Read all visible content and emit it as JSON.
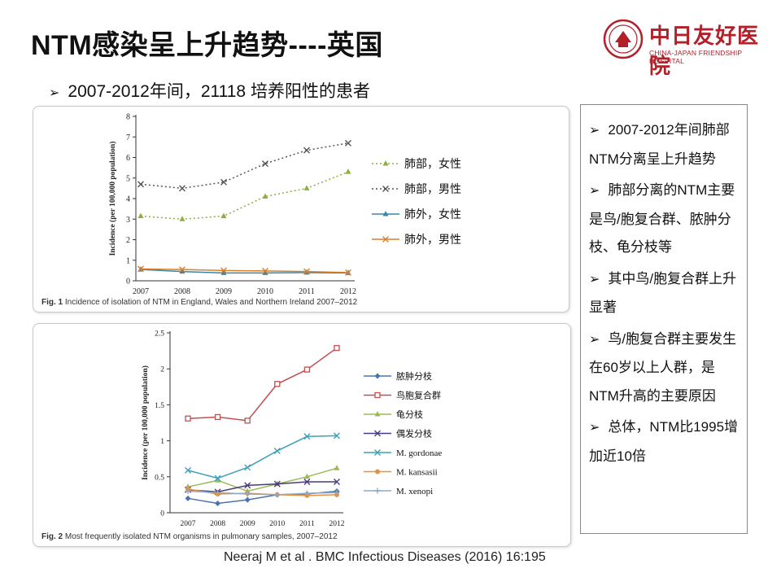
{
  "slide": {
    "title": "NTM感染呈上升趋势----英国",
    "subtitle": "2007-2012年间，21118  培养阳性的患者",
    "citation": "Neeraj M et al . BMC Infectious  Diseases (2016) 16:195"
  },
  "logo": {
    "name_cn": "中日友好医院",
    "name_en": "CHINA-JAPAN FRIENDSHIP HOSPITAL"
  },
  "sidebar": {
    "bullets": [
      "2007-2012年间肺部NTM分离呈上升趋势",
      "肺部分离的NTM主要是鸟/胞复合群、脓肿分枝、龟分枝等",
      "其中鸟/胞复合群上升显著",
      "鸟/胞复合群主要发生在60岁以上人群，是NTM升高的主要原因",
      "总体，NTM比1995增加近10倍"
    ]
  },
  "chart_data": [
    {
      "type": "line",
      "caption_label": "Fig. 1",
      "caption_text": "Incidence of isolation of NTM in England, Wales and Northern Ireland 2007–2012",
      "ylabel": "Incidence (per 100,000 population)",
      "x": [
        "2007",
        "2008",
        "2009",
        "2010",
        "2011",
        "2012"
      ],
      "ylim": [
        0,
        8
      ],
      "yticks": [
        "0",
        "1",
        "2",
        "3",
        "4",
        "5",
        "6",
        "7",
        "8"
      ],
      "legend_position": "right",
      "series": [
        {
          "name": "肺部，女性",
          "values": [
            3.15,
            3.0,
            3.15,
            4.1,
            4.5,
            5.3
          ],
          "color": "#8fae3f",
          "marker": "triangle",
          "dash": "2,3"
        },
        {
          "name": "肺部，男性",
          "values": [
            4.7,
            4.5,
            4.8,
            5.7,
            6.35,
            6.7
          ],
          "color": "#555555",
          "marker": "x",
          "dash": "2,3"
        },
        {
          "name": "肺外，女性",
          "values": [
            0.55,
            0.45,
            0.38,
            0.38,
            0.4,
            0.38
          ],
          "color": "#3a86a8",
          "marker": "triangle",
          "dash": ""
        },
        {
          "name": "肺外，男性",
          "values": [
            0.58,
            0.55,
            0.5,
            0.48,
            0.45,
            0.4
          ],
          "color": "#d9802c",
          "marker": "x",
          "dash": ""
        }
      ]
    },
    {
      "type": "line",
      "caption_label": "Fig. 2",
      "caption_text": "Most frequently isolated NTM organisms in pulmonary samples, 2007–2012",
      "ylabel": "Incidence (per 100,000 population)",
      "x": [
        "2007",
        "2008",
        "2009",
        "2010",
        "2011",
        "2012"
      ],
      "ylim": [
        0,
        2.5
      ],
      "yticks": [
        "0",
        "0.5",
        "1",
        "1.5",
        "2",
        "2.5"
      ],
      "legend_position": "right",
      "series": [
        {
          "name": "脓肿分枝",
          "values": [
            0.2,
            0.13,
            0.18,
            0.25,
            0.26,
            0.3
          ],
          "color": "#4a74b0",
          "marker": "diamond"
        },
        {
          "name": "鸟胞复合群",
          "values": [
            1.31,
            1.33,
            1.28,
            1.79,
            1.99,
            2.29
          ],
          "color": "#c0504d",
          "marker": "square"
        },
        {
          "name": "龟分枝",
          "values": [
            0.36,
            0.45,
            0.3,
            0.4,
            0.5,
            0.62
          ],
          "color": "#9bbb59",
          "marker": "triangle"
        },
        {
          "name": "偶发分枝",
          "values": [
            0.32,
            0.29,
            0.38,
            0.4,
            0.43,
            0.43
          ],
          "color": "#4b3b7a",
          "marker": "x"
        },
        {
          "name": "M. gordonae",
          "values": [
            0.59,
            0.48,
            0.63,
            0.86,
            1.06,
            1.07
          ],
          "color": "#3fa0b8",
          "marker": "x"
        },
        {
          "name": "M. kansasii",
          "values": [
            0.33,
            0.26,
            0.27,
            0.25,
            0.24,
            0.25
          ],
          "color": "#e8913a",
          "marker": "circle"
        },
        {
          "name": "M. xenopi",
          "values": [
            0.3,
            0.28,
            0.26,
            0.25,
            0.27,
            0.28
          ],
          "color": "#8fa8c8",
          "marker": "plus"
        }
      ]
    }
  ]
}
